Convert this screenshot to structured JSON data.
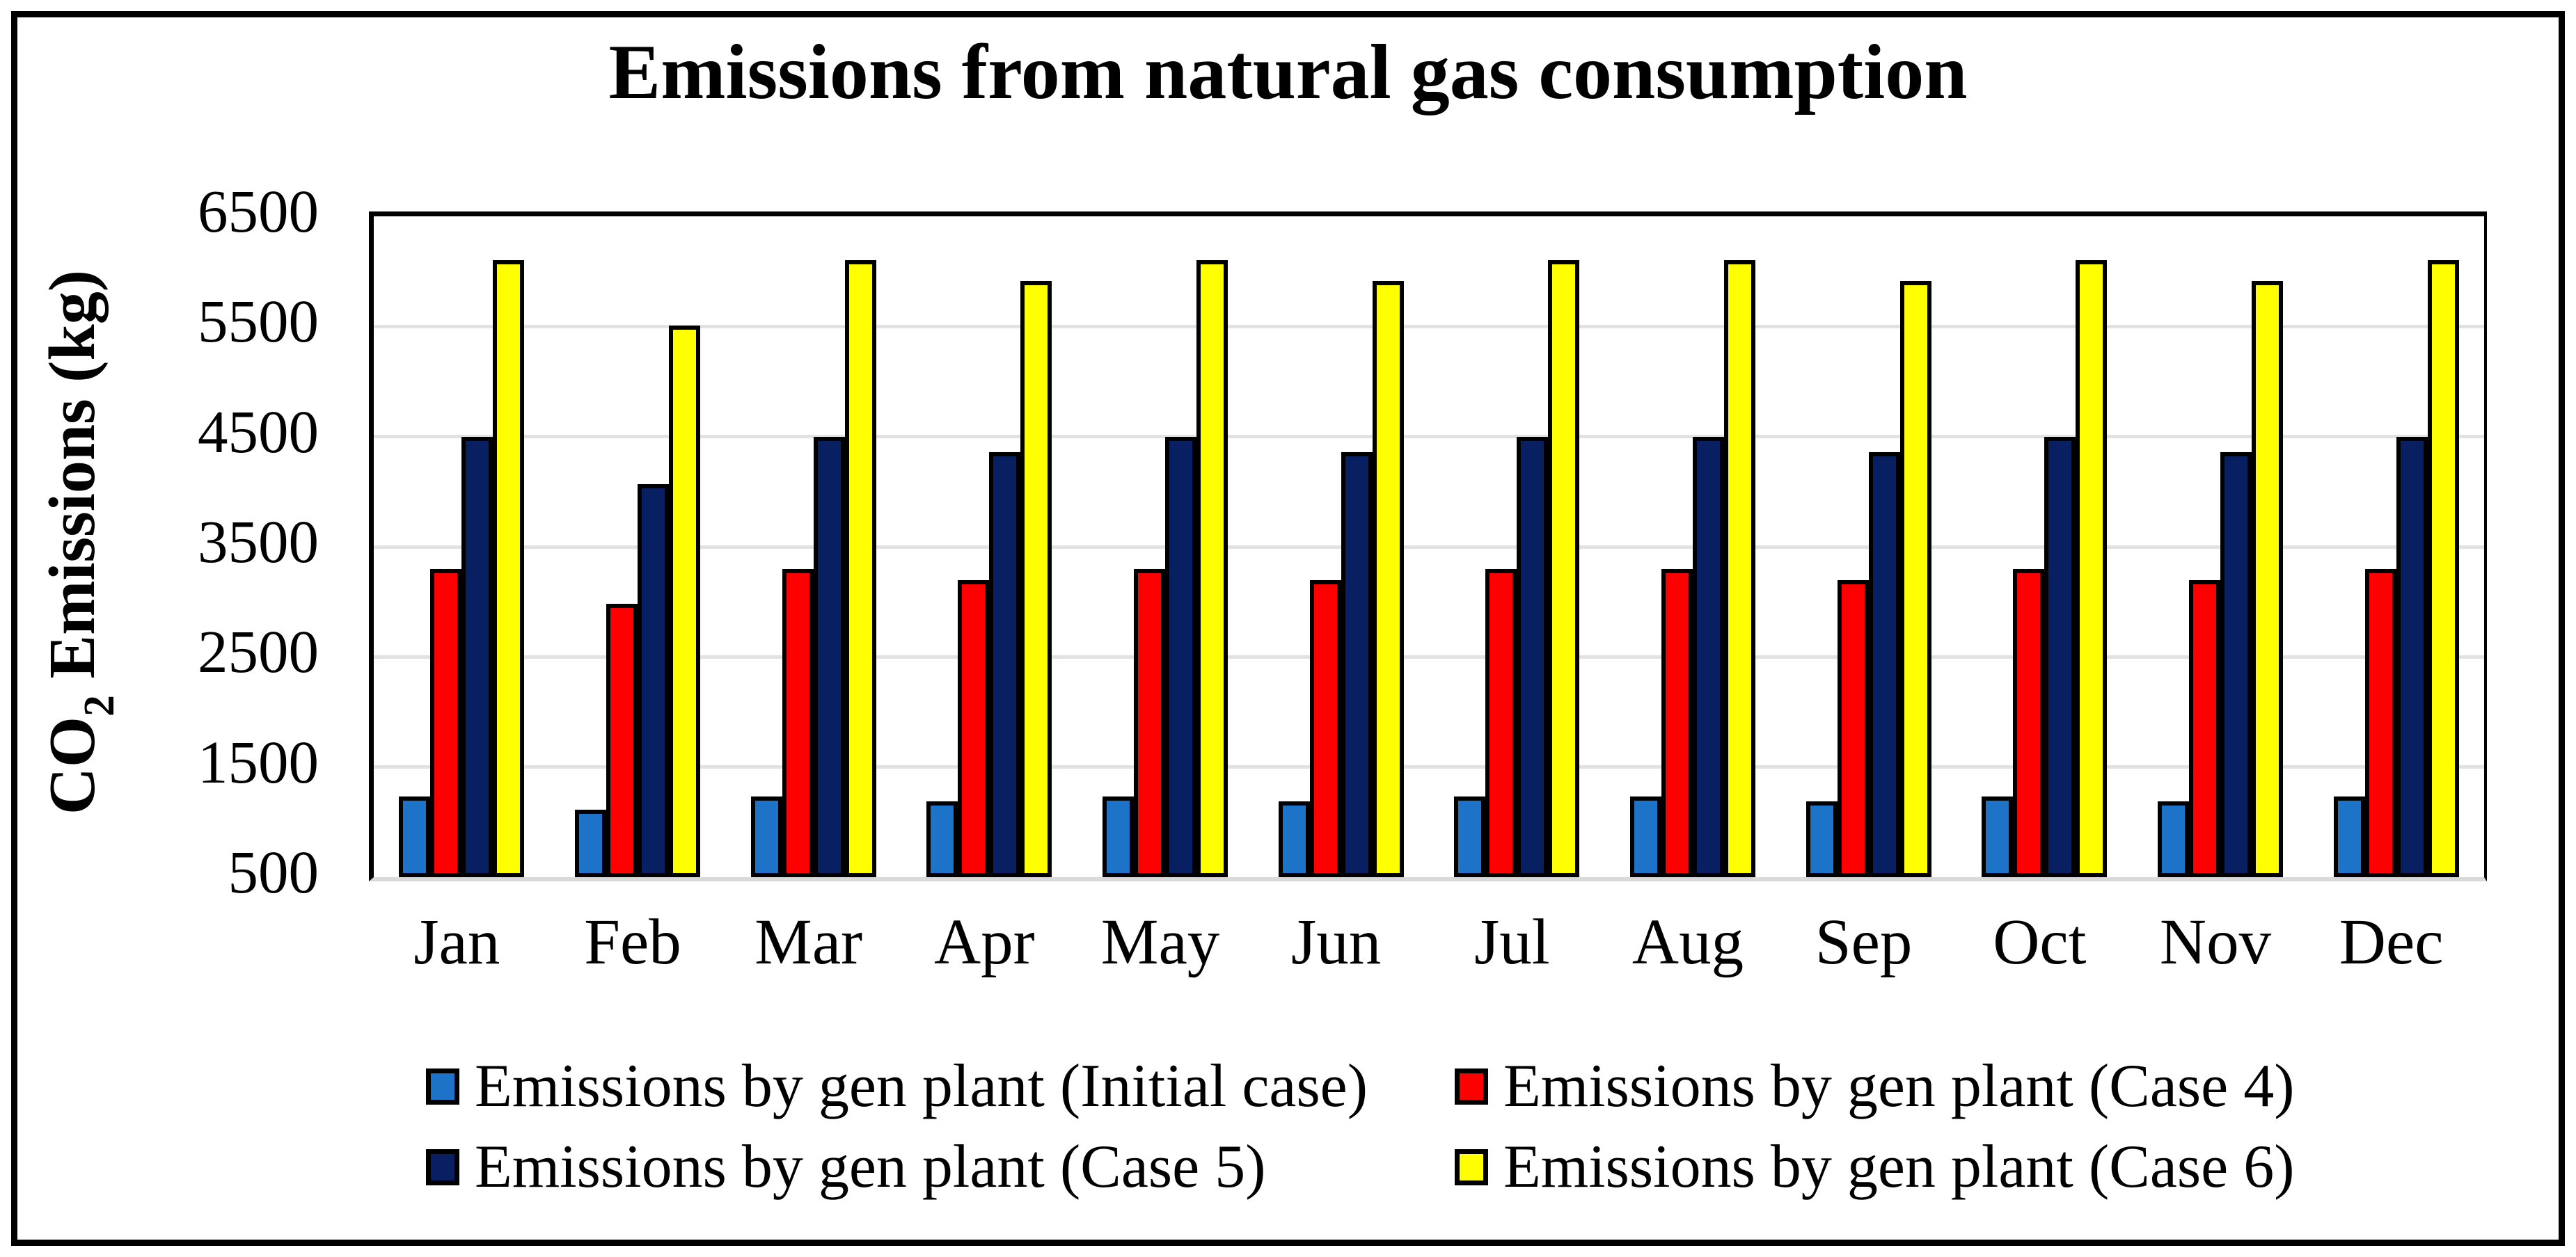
{
  "title": "Emissions from natural gas consumption",
  "y_axis": {
    "label_pre": "CO",
    "label_sub": "2",
    "label_post": " Emissions (kg)",
    "ticks": [
      "6500",
      "5500",
      "4500",
      "3500",
      "2500",
      "1500",
      "500"
    ]
  },
  "chart_data": {
    "type": "bar",
    "title": "Emissions from natural gas consumption",
    "categories": [
      "Jan",
      "Feb",
      "Mar",
      "Apr",
      "May",
      "Jun",
      "Jul",
      "Aug",
      "Sep",
      "Oct",
      "Nov",
      "Dec"
    ],
    "series": [
      {
        "name": "Emissions by gen plant (Initial case)",
        "color": "#1C73C8",
        "values": [
          1230,
          1110,
          1230,
          1190,
          1230,
          1190,
          1230,
          1230,
          1190,
          1230,
          1190,
          1230
        ]
      },
      {
        "name": "Emissions by gen plant (Case 4)",
        "color": "#FE0000",
        "values": [
          3300,
          2980,
          3300,
          3200,
          3300,
          3200,
          3300,
          3300,
          3200,
          3300,
          3200,
          3300
        ]
      },
      {
        "name": "Emissions by gen plant (Case 5)",
        "color": "#082061",
        "values": [
          4500,
          4070,
          4500,
          4360,
          4500,
          4360,
          4500,
          4500,
          4360,
          4500,
          4360,
          4500
        ]
      },
      {
        "name": "Emissions by gen plant (Case 6)",
        "color": "#FFFF00",
        "values": [
          6100,
          5510,
          6100,
          5910,
          6100,
          5910,
          6100,
          6100,
          5910,
          6100,
          5910,
          6100
        ]
      }
    ],
    "xlabel": "",
    "ylabel": "CO2 Emissions (kg)",
    "ylim": [
      500,
      6500
    ],
    "ytick_step": 1000,
    "grid": true,
    "legend_position": "bottom"
  }
}
